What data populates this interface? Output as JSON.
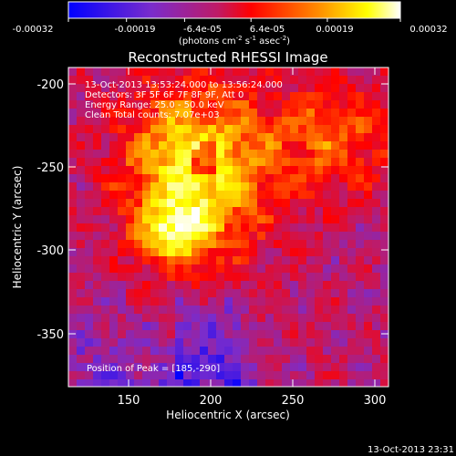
{
  "colorbar": {
    "tick_labels": [
      "-0.00032",
      "-0.00019",
      "-6.4e-05",
      "6.4e-05",
      "0.00019",
      "0.00032"
    ],
    "units_prefix": "(photons cm",
    "units_sup1": "-2",
    "units_mid": " s",
    "units_sup2": "-1",
    "units_mid2": " asec",
    "units_sup3": "-2",
    "units_suffix": ")",
    "range": [
      -0.00032,
      0.00032
    ]
  },
  "title": "Reconstructed RHESSI Image",
  "info": {
    "time_range": "13-Oct-2013 13:53:24.000 to 13:56:24.000",
    "detectors": "Detectors: 3F 5F 6F 7F 8F 9F, Att 0",
    "energy_range": "Energy Range: 25.0 - 50.0 keV",
    "clean": "Clean     Total counts: 7.07e+03"
  },
  "peak_label": "Position of Peak = [185,-290]",
  "x_axis": {
    "label": "Heliocentric X (arcsec)",
    "ticks": [
      "150",
      "200",
      "250",
      "300"
    ],
    "range": [
      116,
      308
    ]
  },
  "y_axis": {
    "label": "Heliocentric Y (arcsec)",
    "ticks": [
      "-200",
      "-250",
      "-300",
      "-350"
    ],
    "range": [
      -382,
      -188
    ]
  },
  "timestamp": "13-Oct-2013 23:31",
  "colors": {
    "background": "#000000",
    "colormap": [
      "#0000ff",
      "#7a2ccc",
      "#bf1a66",
      "#ff0000",
      "#ff8a00",
      "#ffff00",
      "#ffffff"
    ]
  }
}
